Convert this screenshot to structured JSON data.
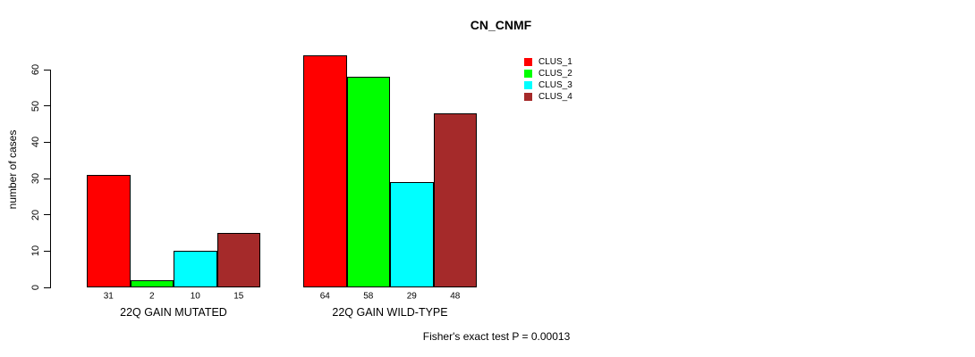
{
  "page": {
    "background_color": "#FFFFFF",
    "text_color": "#000000"
  },
  "chart_data": {
    "type": "bar",
    "title": "CN_CNMF",
    "ylabel": "number of cases",
    "xlabel": "",
    "ylim": [
      0,
      60
    ],
    "yticks": [
      0,
      10,
      20,
      30,
      40,
      50,
      60
    ],
    "grid": false,
    "legend_position": "top-right-outside",
    "categories": [
      "22Q GAIN MUTATED",
      "22Q GAIN WILD-TYPE"
    ],
    "series": [
      {
        "name": "CLUS_1",
        "color": "#FF0000",
        "values": [
          31,
          64
        ]
      },
      {
        "name": "CLUS_2",
        "color": "#00FF00",
        "values": [
          2,
          58
        ]
      },
      {
        "name": "CLUS_3",
        "color": "#00FFFF",
        "values": [
          10,
          29
        ]
      },
      {
        "name": "CLUS_4",
        "color": "#A52A2A",
        "values": [
          15,
          48
        ]
      }
    ],
    "show_bar_values": true,
    "bar_border_color": "#000000",
    "annotation": "Fisher's exact test P = 0.00013"
  }
}
